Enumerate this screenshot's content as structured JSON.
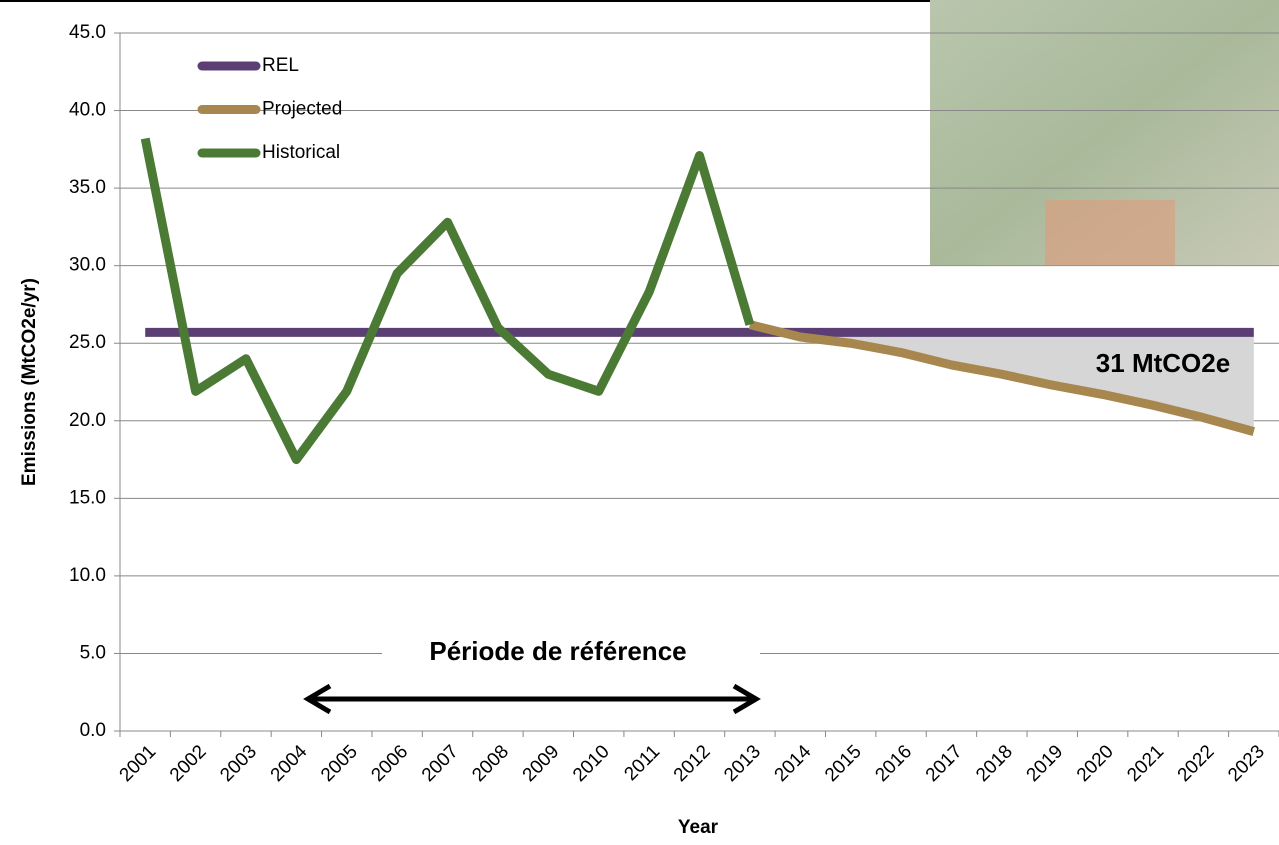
{
  "chart_data": {
    "type": "line",
    "categories": [
      "2001",
      "2002",
      "2003",
      "2004",
      "2005",
      "2006",
      "2007",
      "2008",
      "2009",
      "2010",
      "2011",
      "2012",
      "2013",
      "2014",
      "2015",
      "2016",
      "2017",
      "2018",
      "2019",
      "2020",
      "2021",
      "2022",
      "2023"
    ],
    "series": [
      {
        "name": "REL",
        "color": "#5b3f74",
        "values": [
          25.7,
          25.7,
          25.7,
          25.7,
          25.7,
          25.7,
          25.7,
          25.7,
          25.7,
          25.7,
          25.7,
          25.7,
          25.7,
          25.7,
          25.7,
          25.7,
          25.7,
          25.7,
          25.7,
          25.7,
          25.7,
          25.7,
          25.7
        ]
      },
      {
        "name": "Projected",
        "color": "#a8874f",
        "values": [
          null,
          null,
          null,
          null,
          null,
          null,
          null,
          null,
          null,
          null,
          null,
          null,
          26.2,
          25.4,
          25.0,
          24.4,
          23.6,
          23.0,
          22.3,
          21.7,
          21.0,
          20.2,
          19.3
        ]
      },
      {
        "name": "Historical",
        "color": "#4b7a35",
        "values": [
          38.2,
          21.9,
          24.0,
          17.5,
          21.9,
          29.5,
          32.8,
          26.0,
          23.0,
          21.9,
          28.3,
          37.1,
          26.2,
          null,
          null,
          null,
          null,
          null,
          null,
          null,
          null,
          null,
          null
        ]
      }
    ],
    "ylim": [
      0,
      45
    ],
    "yticks": [
      {
        "value": 0,
        "label": "0.0"
      },
      {
        "value": 5,
        "label": "5.0"
      },
      {
        "value": 10,
        "label": "10.0"
      },
      {
        "value": 15,
        "label": "15.0"
      },
      {
        "value": 20,
        "label": "20.0"
      },
      {
        "value": 25,
        "label": "25.0"
      },
      {
        "value": 30,
        "label": "30.0"
      },
      {
        "value": 35,
        "label": "35.0"
      },
      {
        "value": 40,
        "label": "40.0"
      },
      {
        "value": 45,
        "label": "45.0"
      }
    ],
    "grid": true,
    "x_label": "Year",
    "y_label": "Emissions (MtCO2e/yr)",
    "annotations": [
      "31 MtCO2e",
      "Période de référence"
    ],
    "legend": "upper left"
  }
}
